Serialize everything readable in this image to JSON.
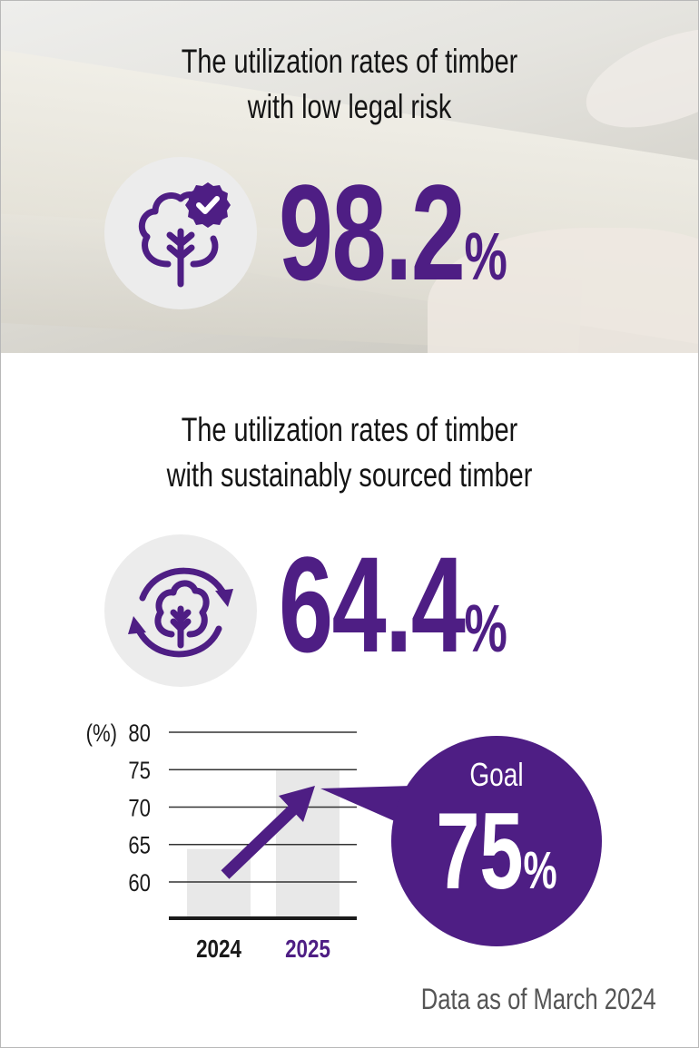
{
  "section1": {
    "title_line1": "The utilization rates of timber",
    "title_line2": "with low legal risk",
    "value": "98.2",
    "unit": "%",
    "icon": "tree-check-icon"
  },
  "section2": {
    "title_line1": "The utilization rates of timber",
    "title_line2": "with sustainably sourced timber",
    "value": "64.4",
    "unit": "%",
    "icon": "tree-recycle-icon"
  },
  "goal": {
    "label": "Goal",
    "value": "75",
    "unit": "%"
  },
  "footnote": "Data as of March 2024",
  "colors": {
    "accent": "#4e1e84",
    "bar": "#e8e8e8",
    "axis": "#1a1a1a",
    "icon_bg": "#ececec"
  },
  "chart_data": {
    "type": "bar",
    "categories": [
      "2024",
      "2025"
    ],
    "values": [
      64.4,
      75
    ],
    "ylabel": "(%)",
    "yticks": [
      60,
      65,
      70,
      75,
      80
    ],
    "ylim": [
      55,
      80
    ],
    "grid": true,
    "highlight_category": "2025",
    "arrow": "from 2024 to 2025"
  }
}
